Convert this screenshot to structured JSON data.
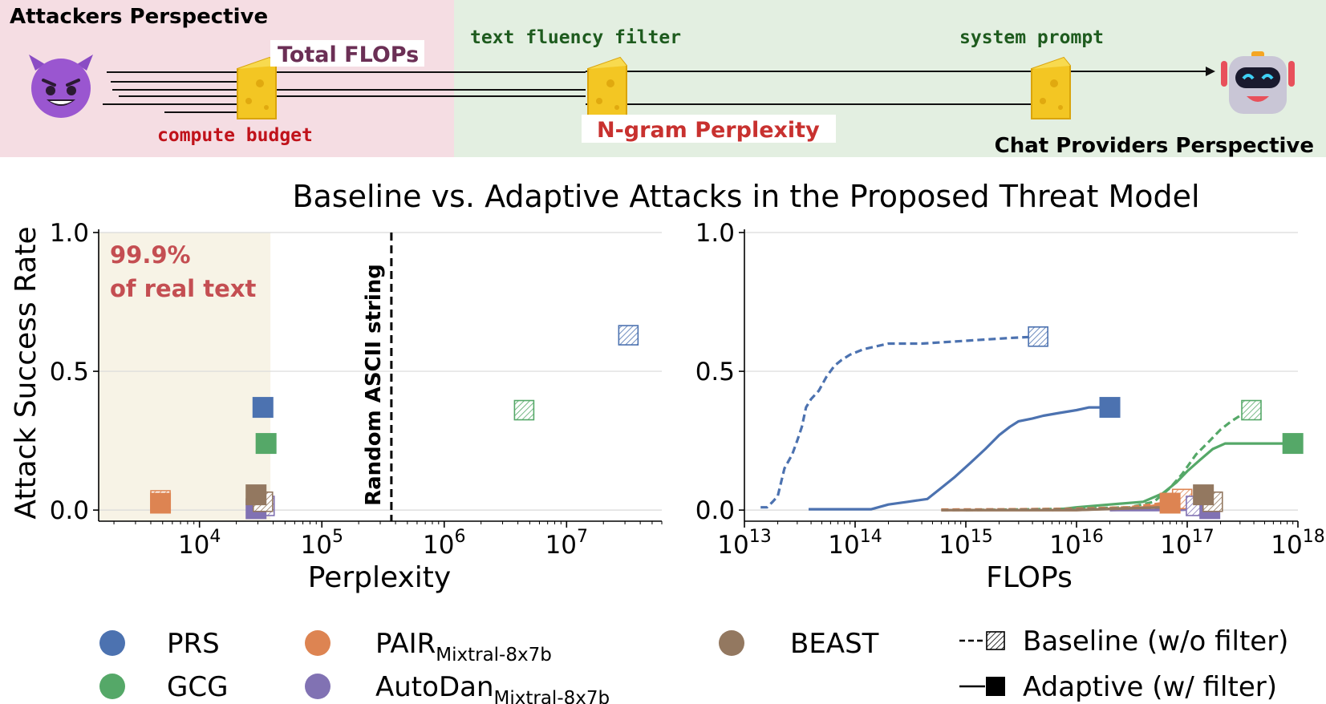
{
  "banner": {
    "attacker_title": "Attackers Perspective",
    "provider_title": "Chat Providers Perspective",
    "total_flops": "Total FLOPs",
    "compute_budget": "compute budget",
    "text_fluency_filter": "text fluency filter",
    "ngram_perplexity": "N-gram Perplexity",
    "system_prompt": "system prompt",
    "icons": [
      "devil-face-icon",
      "cheese-slice-icon",
      "robot-icon"
    ],
    "colors": {
      "attacker_bg": "#f5dde3",
      "provider_bg": "#e3efe1",
      "compute_text": "#c0121a",
      "flops_text": "#6b2f55",
      "ngram_text": "#c8312f",
      "mono_green": "#1e5b1e"
    }
  },
  "figure_title": "Baseline vs. Adaptive Attacks in the Proposed Threat Model",
  "annotations": {
    "real_text_line1": "99.9%",
    "real_text_line2": "of real text",
    "random_ascii": "Random ASCII string"
  },
  "colors": {
    "PRS": "#4c72b0",
    "GCG": "#55a868",
    "PAIR": "#dd8452",
    "AutoDan": "#8172b3",
    "BEAST": "#937860",
    "shade": "#f7f3e6",
    "annot": "#c44e52"
  },
  "legend": {
    "items": [
      {
        "key": "PRS",
        "label": "PRS",
        "sub": ""
      },
      {
        "key": "GCG",
        "label": "GCG",
        "sub": ""
      },
      {
        "key": "PAIR",
        "label": "PAIR",
        "sub": "Mixtral-8x7b"
      },
      {
        "key": "AutoDan",
        "label": "AutoDan",
        "sub": "Mixtral-8x7b"
      },
      {
        "key": "BEAST",
        "label": "BEAST",
        "sub": ""
      }
    ],
    "baseline": "Baseline (w/o filter)",
    "adaptive": "Adaptive (w/ filter)"
  },
  "chart_data": [
    {
      "type": "scatter",
      "xlabel": "Perplexity",
      "ylabel": "Attack Success Rate",
      "xscale": "log",
      "xlim": [
        1500,
        60000000
      ],
      "ylim": [
        -0.04,
        1.0
      ],
      "xticks": [
        10000,
        100000,
        1000000,
        10000000
      ],
      "xtick_labels": [
        {
          "base": "10",
          "exp": "4"
        },
        {
          "base": "10",
          "exp": "5"
        },
        {
          "base": "10",
          "exp": "6"
        },
        {
          "base": "10",
          "exp": "7"
        }
      ],
      "yticks": [
        0.0,
        0.5,
        1.0
      ],
      "ytick_labels": [
        "0.0",
        "0.5",
        "1.0"
      ],
      "grid": "horizontal",
      "shaded_region": {
        "x": [
          1500,
          38000
        ],
        "label": "99.9% of real text"
      },
      "vline": {
        "x": 370000,
        "label": "Random ASCII string"
      },
      "series": [
        {
          "name": "PRS",
          "baseline": {
            "x": 32000000,
            "y": 0.63
          },
          "adaptive": {
            "x": 33000,
            "y": 0.37
          }
        },
        {
          "name": "GCG",
          "baseline": {
            "x": 4500000,
            "y": 0.36
          },
          "adaptive": {
            "x": 35000,
            "y": 0.24
          }
        },
        {
          "name": "PAIR",
          "baseline": {
            "x": 4800,
            "y": 0.035
          },
          "adaptive": {
            "x": 4800,
            "y": 0.025
          }
        },
        {
          "name": "AutoDan",
          "baseline": {
            "x": 34000,
            "y": 0.015
          },
          "adaptive": {
            "x": 29000,
            "y": 0.005
          }
        },
        {
          "name": "BEAST",
          "baseline": {
            "x": 33000,
            "y": 0.03
          },
          "adaptive": {
            "x": 29000,
            "y": 0.055
          }
        }
      ]
    },
    {
      "type": "line",
      "xlabel": "FLOPs",
      "ylabel": "",
      "xscale": "log",
      "xlim": [
        10000000000000,
        1000000000000000000
      ],
      "ylim": [
        -0.04,
        1.0
      ],
      "xticks": [
        10000000000000,
        100000000000000,
        1000000000000000,
        10000000000000000,
        100000000000000000,
        1000000000000000000
      ],
      "xtick_labels": [
        {
          "base": "10",
          "exp": "13"
        },
        {
          "base": "10",
          "exp": "14"
        },
        {
          "base": "10",
          "exp": "15"
        },
        {
          "base": "10",
          "exp": "16"
        },
        {
          "base": "10",
          "exp": "17"
        },
        {
          "base": "10",
          "exp": "18"
        }
      ],
      "yticks": [
        0.0,
        0.5,
        1.0
      ],
      "ytick_labels": [
        "0.0",
        "0.5",
        "1.0"
      ],
      "grid": "horizontal",
      "series": [
        {
          "name": "PRS",
          "style": "baseline",
          "points": [
            [
              14000000000000,
              0.01
            ],
            [
              16000000000000,
              0.01
            ],
            [
              18000000000000,
              0.03
            ],
            [
              20000000000000,
              0.05
            ],
            [
              23000000000000,
              0.15
            ],
            [
              27000000000000,
              0.2
            ],
            [
              30000000000000,
              0.25
            ],
            [
              33000000000000,
              0.3
            ],
            [
              36000000000000,
              0.37
            ],
            [
              40000000000000,
              0.4
            ],
            [
              47000000000000,
              0.43
            ],
            [
              55000000000000,
              0.48
            ],
            [
              65000000000000,
              0.52
            ],
            [
              75000000000000,
              0.54
            ],
            [
              90000000000000,
              0.56
            ],
            [
              120000000000000,
              0.58
            ],
            [
              200000000000000,
              0.6
            ],
            [
              400000000000000,
              0.6
            ],
            [
              1000000000000000,
              0.61
            ],
            [
              2500000000000000,
              0.62
            ],
            [
              4500000000000000,
              0.625
            ]
          ],
          "end": {
            "x": 4500000000000000,
            "y": 0.625
          }
        },
        {
          "name": "PRS",
          "style": "adaptive",
          "points": [
            [
              38000000000000,
              0.003
            ],
            [
              80000000000000,
              0.003
            ],
            [
              140000000000000,
              0.003
            ],
            [
              200000000000000,
              0.02
            ],
            [
              300000000000000,
              0.03
            ],
            [
              450000000000000,
              0.04
            ],
            [
              600000000000000,
              0.08
            ],
            [
              800000000000000,
              0.12
            ],
            [
              1100000000000000,
              0.17
            ],
            [
              1500000000000000,
              0.22
            ],
            [
              2000000000000000,
              0.27
            ],
            [
              2500000000000000,
              0.3
            ],
            [
              3000000000000000,
              0.32
            ],
            [
              4000000000000000,
              0.33
            ],
            [
              5000000000000000,
              0.34
            ],
            [
              7000000000000000,
              0.35
            ],
            [
              10000000000000000,
              0.36
            ],
            [
              13000000000000000,
              0.37
            ],
            [
              20000000000000000,
              0.37
            ]
          ],
          "end": {
            "x": 20000000000000000,
            "y": 0.37
          }
        },
        {
          "name": "GCG",
          "style": "baseline",
          "points": [
            [
              1000000000000000,
              0.0
            ],
            [
              10000000000000000,
              0.005
            ],
            [
              30000000000000000,
              0.01
            ],
            [
              50000000000000000,
              0.03
            ],
            [
              70000000000000000,
              0.08
            ],
            [
              90000000000000000,
              0.13
            ],
            [
              120000000000000000,
              0.2
            ],
            [
              160000000000000000,
              0.25
            ],
            [
              200000000000000000,
              0.29
            ],
            [
              250000000000000000,
              0.32
            ],
            [
              300000000000000000,
              0.34
            ],
            [
              380000000000000000,
              0.36
            ]
          ],
          "end": {
            "x": 380000000000000000,
            "y": 0.36
          }
        },
        {
          "name": "GCG",
          "style": "adaptive",
          "points": [
            [
              6000000000000000,
              0.0
            ],
            [
              10000000000000000,
              0.01
            ],
            [
              20000000000000000,
              0.02
            ],
            [
              40000000000000000,
              0.03
            ],
            [
              60000000000000000,
              0.06
            ],
            [
              80000000000000000,
              0.1
            ],
            [
              100000000000000000,
              0.14
            ],
            [
              130000000000000000,
              0.18
            ],
            [
              170000000000000000,
              0.22
            ],
            [
              220000000000000000,
              0.24
            ],
            [
              400000000000000000,
              0.24
            ],
            [
              900000000000000000,
              0.24
            ]
          ],
          "end": {
            "x": 900000000000000000,
            "y": 0.24
          }
        },
        {
          "name": "PAIR",
          "style": "baseline",
          "points": [
            [
              600000000000000,
              0.002
            ],
            [
              3000000000000000,
              0.003
            ],
            [
              10000000000000000,
              0.005
            ],
            [
              30000000000000000,
              0.01
            ],
            [
              60000000000000000,
              0.025
            ],
            [
              90000000000000000,
              0.04
            ]
          ],
          "end": {
            "x": 90000000000000000,
            "y": 0.04
          }
        },
        {
          "name": "PAIR",
          "style": "adaptive",
          "points": [
            [
              600000000000000,
              0.0
            ],
            [
              10000000000000000,
              0.0
            ],
            [
              40000000000000000,
              0.01
            ],
            [
              70000000000000000,
              0.025
            ]
          ],
          "end": {
            "x": 70000000000000000,
            "y": 0.025
          }
        },
        {
          "name": "AutoDan",
          "style": "baseline",
          "points": [
            [
              20000000000000000,
              0.0
            ],
            [
              60000000000000000,
              0.005
            ],
            [
              120000000000000000,
              0.015
            ]
          ],
          "end": {
            "x": 120000000000000000,
            "y": 0.015
          }
        },
        {
          "name": "AutoDan",
          "style": "adaptive",
          "points": [
            [
              20000000000000000,
              0.0
            ],
            [
              80000000000000000,
              0.0
            ],
            [
              160000000000000000,
              0.005
            ]
          ],
          "end": {
            "x": 160000000000000000,
            "y": 0.005
          }
        },
        {
          "name": "BEAST",
          "style": "baseline",
          "points": [
            [
              600000000000000,
              0.0
            ],
            [
              10000000000000000,
              0.003
            ],
            [
              60000000000000000,
              0.01
            ],
            [
              170000000000000000,
              0.03
            ]
          ],
          "end": {
            "x": 170000000000000000,
            "y": 0.03
          }
        },
        {
          "name": "BEAST",
          "style": "adaptive",
          "points": [
            [
              600000000000000,
              0.0
            ],
            [
              10000000000000000,
              0.0
            ],
            [
              60000000000000000,
              0.01
            ],
            [
              140000000000000000,
              0.055
            ]
          ],
          "end": {
            "x": 140000000000000000,
            "y": 0.055
          }
        }
      ]
    }
  ]
}
